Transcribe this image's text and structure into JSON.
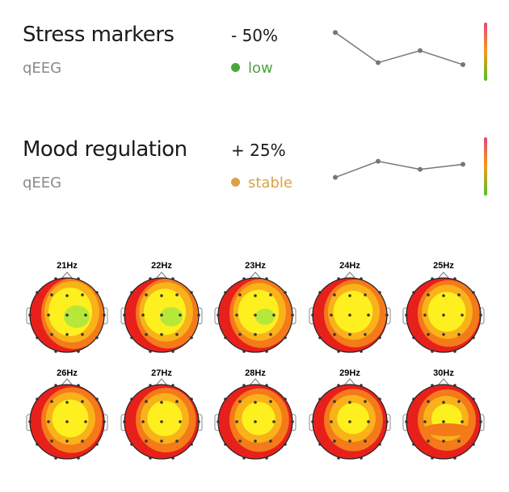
{
  "metrics": [
    {
      "title": "Stress markers",
      "source": "qEEG",
      "change": "- 50%",
      "status": "low",
      "status_color": "#4aa63a",
      "trend": [
        4,
        1,
        2.2,
        0.8
      ]
    },
    {
      "title": "Mood regulation",
      "source": "qEEG",
      "change": "+ 25%",
      "status": "stable",
      "status_color": "#d9a24a",
      "trend": [
        1,
        2.6,
        1.8,
        2.3
      ]
    }
  ],
  "scale_colors": [
    "#e8457a",
    "#f49a1c",
    "#4fc12a"
  ],
  "topomaps": [
    {
      "freq": "21Hz",
      "center": "green"
    },
    {
      "freq": "22Hz",
      "center": "green"
    },
    {
      "freq": "23Hz",
      "center": "green"
    },
    {
      "freq": "24Hz",
      "center": "yellow"
    },
    {
      "freq": "25Hz",
      "center": "yellow"
    },
    {
      "freq": "26Hz",
      "center": "yellow"
    },
    {
      "freq": "27Hz",
      "center": "yellow"
    },
    {
      "freq": "28Hz",
      "center": "yellow"
    },
    {
      "freq": "29Hz",
      "center": "yellow"
    },
    {
      "freq": "30Hz",
      "center": "orange"
    }
  ]
}
